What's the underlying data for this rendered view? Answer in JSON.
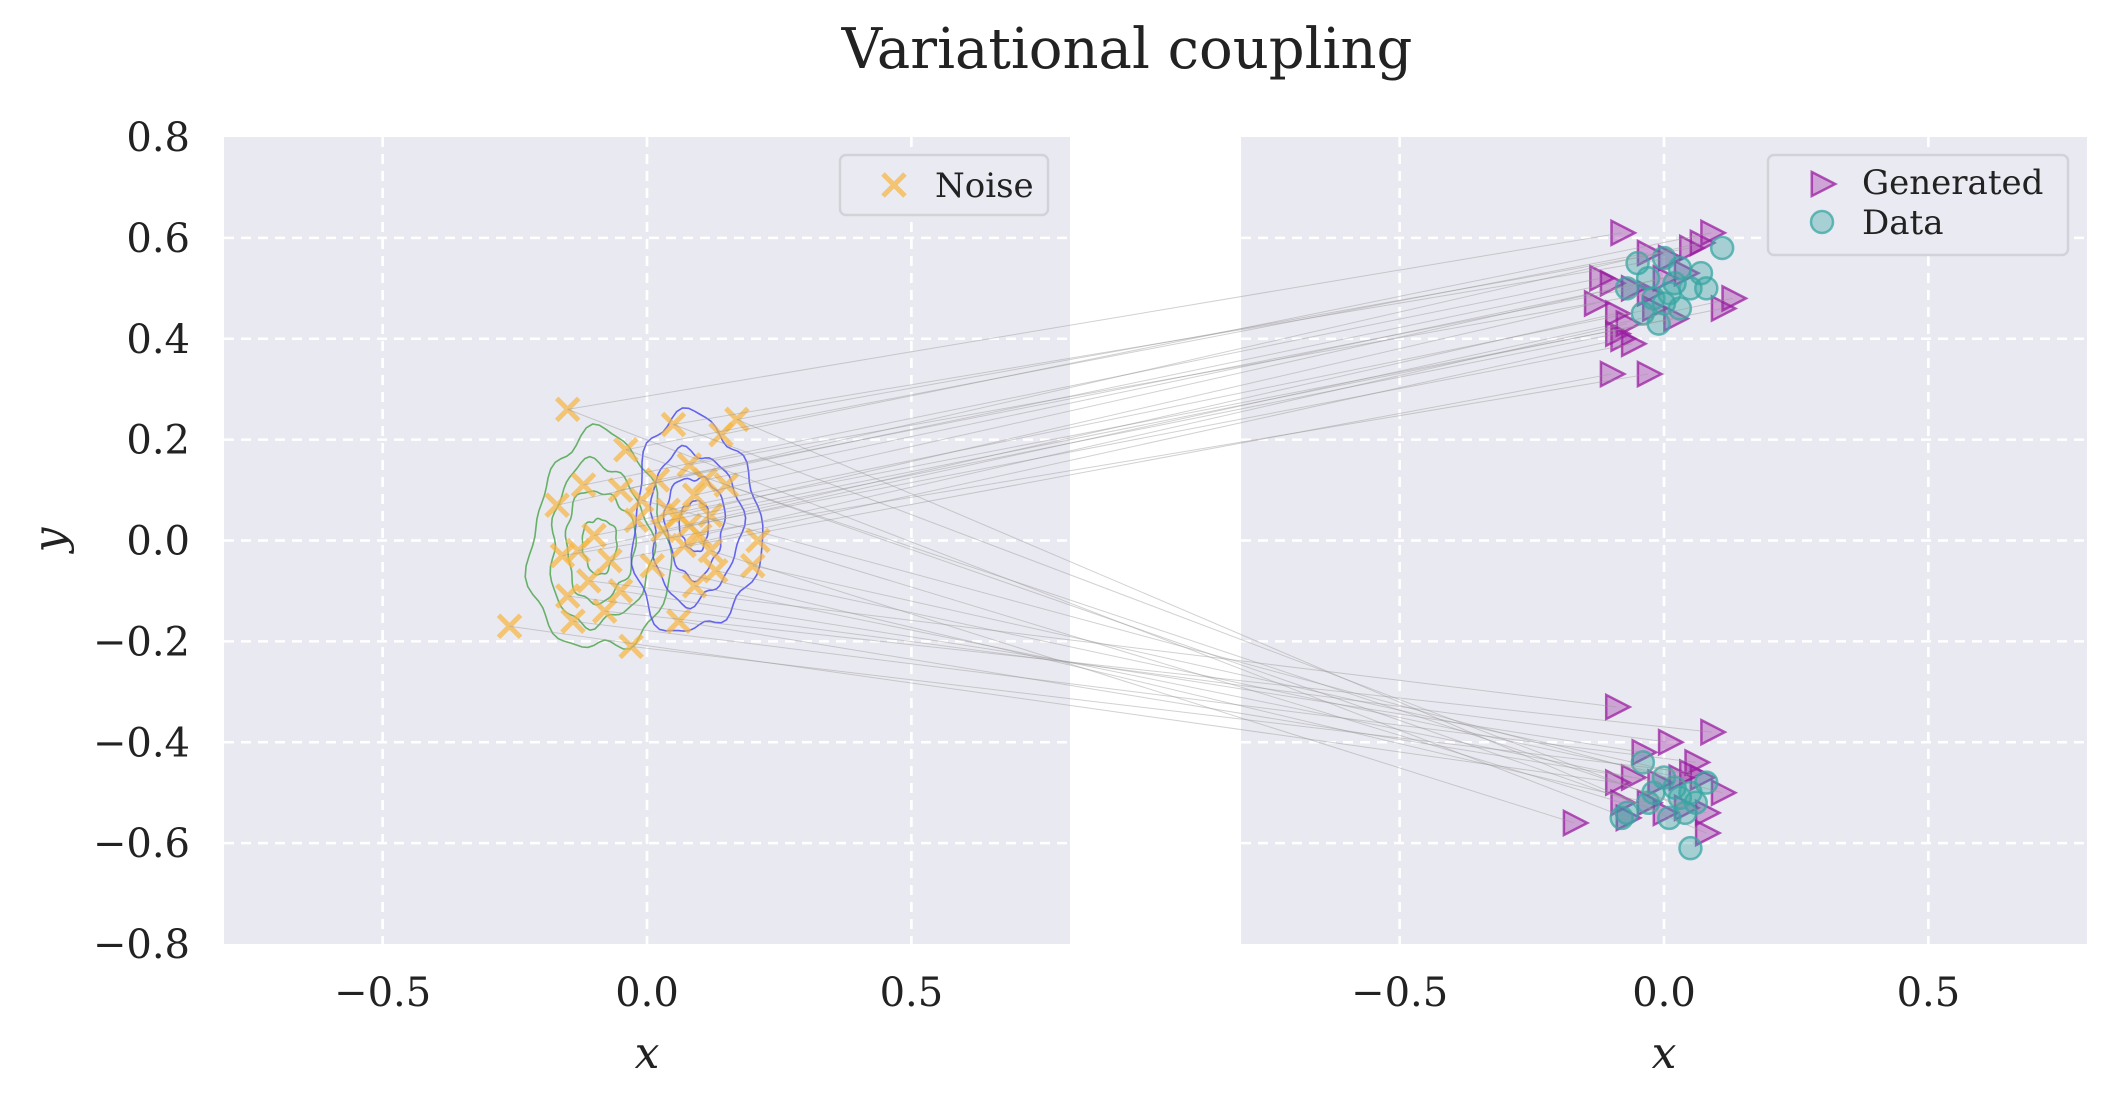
{
  "chart_data": {
    "type": "scatter",
    "title": "Variational coupling",
    "panels": [
      {
        "id": "noise",
        "xlabel": "x",
        "ylabel": "y",
        "xlim": [
          -0.8,
          0.8
        ],
        "ylim": [
          -0.8,
          0.8
        ],
        "xticks": [
          -0.5,
          0.0,
          0.5
        ],
        "xtick_labels": [
          "−0.5",
          "0.0",
          "0.5"
        ],
        "yticks": [
          -0.8,
          -0.6,
          -0.4,
          -0.2,
          0.0,
          0.2,
          0.4,
          0.6,
          0.8
        ],
        "ytick_labels": [
          "−0.8",
          "−0.6",
          "−0.4",
          "−0.2",
          "0.0",
          "0.2",
          "0.4",
          "0.6",
          "0.8"
        ],
        "grid": true,
        "legend_location": "upper right",
        "legend": [
          {
            "label": "Noise",
            "marker": "x",
            "color": "#f5b642"
          }
        ]
      },
      {
        "id": "data",
        "xlabel": "x",
        "ylabel": "",
        "xlim": [
          -0.8,
          0.8
        ],
        "ylim": [
          -0.8,
          0.8
        ],
        "xticks": [
          -0.5,
          0.0,
          0.5
        ],
        "xtick_labels": [
          "−0.5",
          "0.0",
          "0.5"
        ],
        "grid": true,
        "legend_location": "upper right",
        "legend": [
          {
            "label": "Generated",
            "marker": "triangle-right",
            "color": "#9a1fa0"
          },
          {
            "label": "Data",
            "marker": "circle",
            "color": "#3aa6a3"
          }
        ]
      }
    ],
    "colors": {
      "noise": "#f5b642",
      "generated": "#9a1fa0",
      "data": "#3aa6a3",
      "contour_left": "#4fa64f",
      "contour_right": "#4b4bef",
      "coupling_line": "#9a9a9a"
    },
    "contours": [
      {
        "name": "left-mode",
        "center": [
          -0.09,
          -0.01
        ],
        "radii": [
          [
            0.26,
            0.43
          ],
          [
            0.19,
            0.32
          ],
          [
            0.13,
            0.22
          ],
          [
            0.065,
            0.11
          ]
        ]
      },
      {
        "name": "right-mode",
        "center": [
          0.09,
          0.03
        ],
        "radii": [
          [
            0.24,
            0.43
          ],
          [
            0.17,
            0.3
          ],
          [
            0.11,
            0.2
          ],
          [
            0.055,
            0.1
          ]
        ]
      }
    ],
    "noise_points": [
      [
        -0.15,
        0.26
      ],
      [
        -0.04,
        0.18
      ],
      [
        0.05,
        0.23
      ],
      [
        0.17,
        0.24
      ],
      [
        0.14,
        0.21
      ],
      [
        -0.17,
        0.07
      ],
      [
        -0.12,
        0.11
      ],
      [
        -0.05,
        0.1
      ],
      [
        0.02,
        0.12
      ],
      [
        0.08,
        0.15
      ],
      [
        0.11,
        0.12
      ],
      [
        0.09,
        0.09
      ],
      [
        0.06,
        0.05
      ],
      [
        0.03,
        0.02
      ],
      [
        0.1,
        0.01
      ],
      [
        0.12,
        0.05
      ],
      [
        0.07,
        -0.01
      ],
      [
        0.08,
        0.03
      ],
      [
        0.04,
        0.06
      ],
      [
        -0.02,
        0.04
      ],
      [
        -0.1,
        0.01
      ],
      [
        -0.13,
        -0.02
      ],
      [
        -0.07,
        -0.04
      ],
      [
        -0.16,
        -0.03
      ],
      [
        -0.11,
        -0.08
      ],
      [
        -0.05,
        -0.1
      ],
      [
        -0.15,
        -0.11
      ],
      [
        -0.08,
        -0.14
      ],
      [
        -0.14,
        -0.16
      ],
      [
        -0.03,
        -0.21
      ],
      [
        -0.26,
        -0.17
      ],
      [
        0.06,
        -0.16
      ],
      [
        0.09,
        -0.09
      ],
      [
        0.13,
        -0.06
      ],
      [
        0.2,
        -0.05
      ],
      [
        0.21,
        0.0
      ],
      [
        0.01,
        -0.05
      ],
      [
        -0.01,
        0.08
      ],
      [
        0.15,
        0.11
      ],
      [
        0.12,
        -0.02
      ]
    ],
    "generated_points": [
      [
        -0.08,
        0.61
      ],
      [
        -0.03,
        0.57
      ],
      [
        0.01,
        0.56
      ],
      [
        0.05,
        0.58
      ],
      [
        0.09,
        0.61
      ],
      [
        0.07,
        0.59
      ],
      [
        -0.12,
        0.52
      ],
      [
        -0.1,
        0.51
      ],
      [
        -0.06,
        0.5
      ],
      [
        -0.03,
        0.49
      ],
      [
        0.0,
        0.52
      ],
      [
        0.04,
        0.53
      ],
      [
        -0.13,
        0.47
      ],
      [
        -0.09,
        0.45
      ],
      [
        -0.07,
        0.43
      ],
      [
        -0.09,
        0.41
      ],
      [
        -0.08,
        0.4
      ],
      [
        -0.06,
        0.39
      ],
      [
        -0.02,
        0.46
      ],
      [
        0.02,
        0.44
      ],
      [
        0.11,
        0.46
      ],
      [
        0.13,
        0.48
      ],
      [
        -0.1,
        0.33
      ],
      [
        -0.03,
        0.33
      ],
      [
        -0.09,
        -0.33
      ],
      [
        -0.04,
        -0.42
      ],
      [
        0.01,
        -0.4
      ],
      [
        0.09,
        -0.38
      ],
      [
        0.06,
        -0.44
      ],
      [
        0.05,
        -0.46
      ],
      [
        -0.09,
        -0.48
      ],
      [
        -0.06,
        -0.47
      ],
      [
        -0.01,
        -0.48
      ],
      [
        0.03,
        -0.47
      ],
      [
        0.07,
        -0.47
      ],
      [
        -0.08,
        -0.52
      ],
      [
        -0.03,
        -0.52
      ],
      [
        0.11,
        -0.5
      ],
      [
        0.08,
        -0.54
      ],
      [
        -0.17,
        -0.56
      ],
      [
        -0.07,
        -0.55
      ],
      [
        0.0,
        -0.54
      ],
      [
        0.04,
        -0.53
      ],
      [
        0.08,
        -0.58
      ]
    ],
    "data_points": [
      [
        0.11,
        0.58
      ],
      [
        -0.05,
        0.55
      ],
      [
        0.0,
        0.56
      ],
      [
        0.03,
        0.54
      ],
      [
        0.07,
        0.53
      ],
      [
        -0.07,
        0.5
      ],
      [
        -0.03,
        0.52
      ],
      [
        0.02,
        0.51
      ],
      [
        0.05,
        0.5
      ],
      [
        0.08,
        0.5
      ],
      [
        -0.02,
        0.48
      ],
      [
        0.0,
        0.47
      ],
      [
        0.03,
        0.46
      ],
      [
        -0.04,
        0.45
      ],
      [
        -0.01,
        0.43
      ],
      [
        0.01,
        0.49
      ],
      [
        -0.04,
        -0.44
      ],
      [
        0.0,
        -0.47
      ],
      [
        0.02,
        -0.49
      ],
      [
        -0.02,
        -0.5
      ],
      [
        0.05,
        -0.5
      ],
      [
        0.08,
        -0.48
      ],
      [
        -0.08,
        -0.55
      ],
      [
        -0.03,
        -0.52
      ],
      [
        0.01,
        -0.55
      ],
      [
        0.04,
        -0.54
      ],
      [
        0.05,
        -0.61
      ],
      [
        -0.07,
        -0.54
      ],
      [
        0.03,
        -0.51
      ],
      [
        0.06,
        -0.52
      ]
    ]
  }
}
